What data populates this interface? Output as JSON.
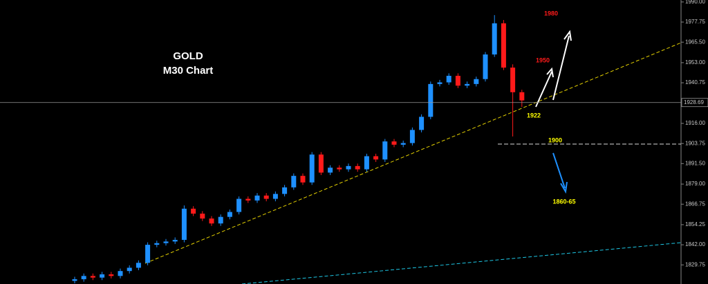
{
  "chart_data": {
    "type": "candlestick",
    "title": "GOLD",
    "subtitle": "M30 Chart",
    "up_color": "#1e90ff",
    "down_color": "#ff1a1a",
    "ylim": [
      1818.1,
      1991.2
    ],
    "yticks": [
      {
        "value": 1990,
        "label": "1990.00"
      },
      {
        "value": 1977.75,
        "label": "1977.75"
      },
      {
        "value": 1965.5,
        "label": "1965.50"
      },
      {
        "value": 1953,
        "label": "1953.00"
      },
      {
        "value": 1940.75,
        "label": "1940.75"
      },
      {
        "value": 1916,
        "label": "1916.00"
      },
      {
        "value": 1903.75,
        "label": "1903.75"
      },
      {
        "value": 1891.5,
        "label": "1891.50"
      },
      {
        "value": 1879,
        "label": "1879.00"
      },
      {
        "value": 1866.75,
        "label": "1866.75"
      },
      {
        "value": 1854.25,
        "label": "1854.25"
      },
      {
        "value": 1842,
        "label": "1842.00"
      },
      {
        "value": 1829.75,
        "label": "1829.75"
      }
    ],
    "last_price": 1928.69,
    "open": [
      1820,
      1821,
      1823,
      1822,
      1824,
      1823,
      1826,
      1828,
      1831,
      1842,
      1843,
      1844,
      1845,
      1864,
      1861,
      1858,
      1855,
      1859,
      1862,
      1870,
      1869,
      1872,
      1870,
      1873,
      1877,
      1884,
      1880,
      1897,
      1886,
      1889,
      1888,
      1890,
      1888,
      1896,
      1894,
      1905,
      1903,
      1904,
      1912,
      1920,
      1940,
      1941,
      1945,
      1939,
      1940,
      1943,
      1958,
      1977,
      1950,
      1935
    ],
    "high": [
      1822.5,
      1824.5,
      1824.5,
      1825.5,
      1825.5,
      1827.5,
      1829.5,
      1832.5,
      1843.5,
      1844.5,
      1845.5,
      1846.5,
      1866,
      1865.5,
      1862.5,
      1859.5,
      1860.5,
      1863.5,
      1871.5,
      1871.5,
      1873.5,
      1873.5,
      1874.5,
      1878.5,
      1885.5,
      1885.5,
      1898.5,
      1898.5,
      1890.5,
      1890.5,
      1891.5,
      1891.5,
      1897.5,
      1897.5,
      1906.5,
      1906.5,
      1905.5,
      1913.5,
      1921.5,
      1941.5,
      1942.5,
      1946.5,
      1946.5,
      1941.5,
      1944.5,
      1959.5,
      1982,
      1979,
      1952,
      1936.5
    ],
    "low": [
      1818.5,
      1819.5,
      1820.5,
      1820.5,
      1821.5,
      1821.5,
      1824.5,
      1826.5,
      1829.5,
      1840.5,
      1841.5,
      1842.5,
      1843.5,
      1859.5,
      1856.5,
      1853.5,
      1853.5,
      1857.5,
      1860.5,
      1867.5,
      1867.5,
      1868.5,
      1868.5,
      1871.5,
      1875.5,
      1878.5,
      1878.5,
      1884.5,
      1884.5,
      1886.5,
      1886.5,
      1886.5,
      1886.5,
      1892.5,
      1892.5,
      1901.5,
      1901.5,
      1902.5,
      1910.5,
      1918.5,
      1938.5,
      1939.5,
      1937.5,
      1937.5,
      1938.5,
      1941.5,
      1956.5,
      1948.5,
      1908,
      1926
    ],
    "close": [
      1821,
      1823,
      1822,
      1824,
      1823,
      1826,
      1828,
      1831,
      1842,
      1843,
      1844,
      1845,
      1864,
      1861,
      1858,
      1855,
      1859,
      1862,
      1870,
      1869,
      1872,
      1870,
      1873,
      1877,
      1884,
      1880,
      1897,
      1886,
      1889,
      1888,
      1890,
      1888,
      1896,
      1894,
      1905,
      1903,
      1904,
      1912,
      1920,
      1940,
      1941,
      1945,
      1939,
      1940,
      1943,
      1958,
      1977,
      1950,
      1935,
      1930
    ],
    "annotations": [
      "1980",
      "1950",
      "1922",
      "1900",
      "1860-65"
    ]
  }
}
